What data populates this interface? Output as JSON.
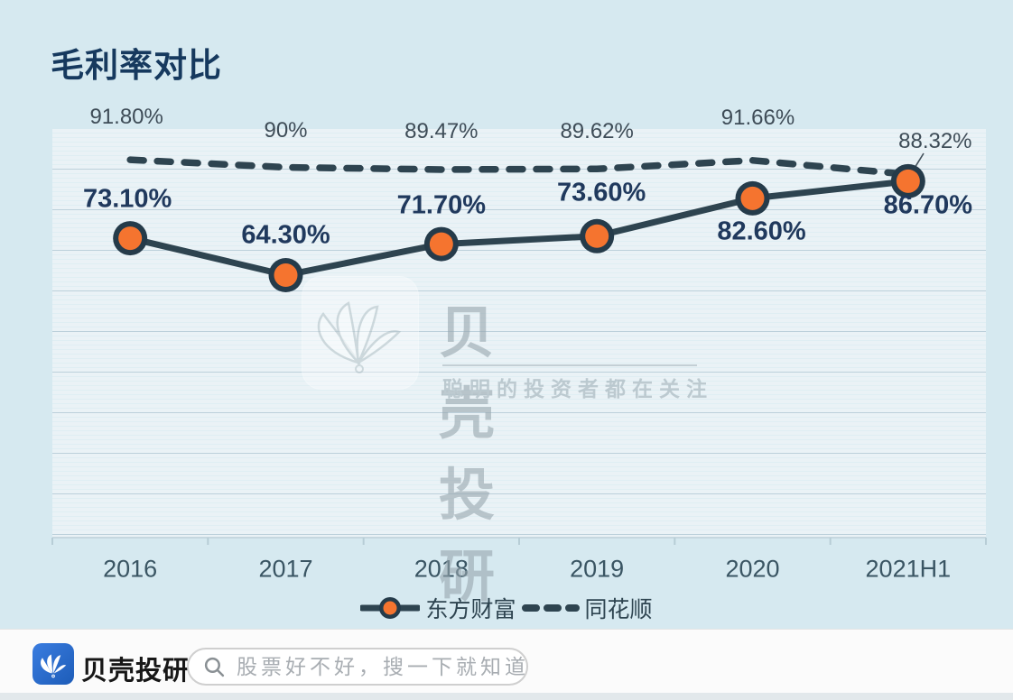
{
  "title": "毛利率对比",
  "chart_data": {
    "type": "line",
    "categories": [
      "2016",
      "2017",
      "2018",
      "2019",
      "2020",
      "2021H1"
    ],
    "series": [
      {
        "name": "东方财富",
        "style": "solid",
        "line_color": "#2e4450",
        "marker": "circle",
        "marker_fill": "#f5742f",
        "marker_ring": "#253b4a",
        "values": [
          73.1,
          64.3,
          71.7,
          73.6,
          82.6,
          86.7
        ],
        "labels": [
          "73.10%",
          "64.30%",
          "71.70%",
          "73.60%",
          "82.60%",
          "86.70%"
        ]
      },
      {
        "name": "同花顺",
        "style": "dashed",
        "line_color": "#2e4450",
        "marker": "none",
        "values": [
          91.8,
          90,
          89.47,
          89.62,
          91.66,
          88.32
        ],
        "labels": [
          "91.80%",
          "90%",
          "89.47%",
          "89.62%",
          "91.66%",
          "88.32%"
        ]
      }
    ],
    "ylim": [
      0,
      100
    ],
    "grid": "fine-horizontal-stripes",
    "legend_position": "bottom"
  },
  "watermark": {
    "brand": "贝壳投研",
    "tagline": "聪明的投资者都在关注",
    "logo": "shell-icon"
  },
  "footer": {
    "brand": "贝壳投研",
    "logo": "shell-icon",
    "search_placeholder": "股票好不好，搜一下就知道"
  },
  "colors": {
    "background": "#d6e9f0",
    "title_navy": "#16395e",
    "line_dark": "#2e4450",
    "marker_orange": "#f5742f",
    "solid_label_navy": "#20395d",
    "dashed_label_gray": "#3e4c57",
    "footer_bg": "#fbfbfb",
    "logo_blue": "#2a6ad0"
  }
}
